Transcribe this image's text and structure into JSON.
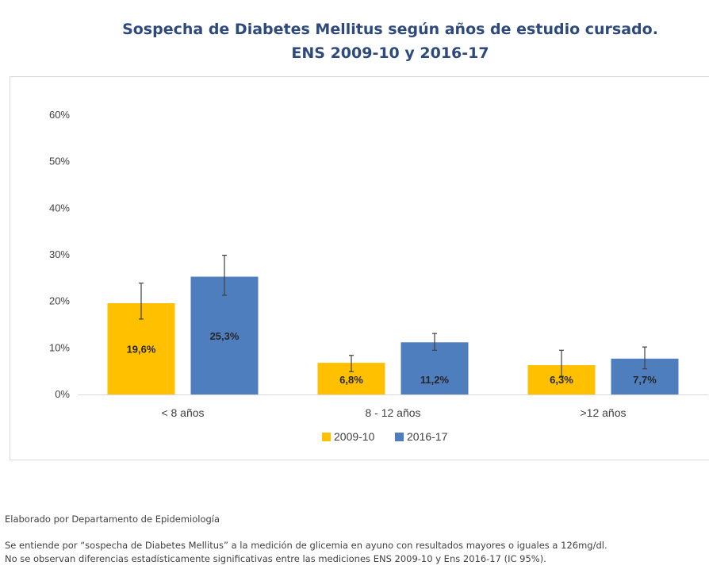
{
  "title_line1": "Sospecha de Diabetes Mellitus según años de estudio cursado.",
  "title_line2": "ENS 2009-10 y 2016-17",
  "notes": {
    "author": "Elaborado por Departamento de Epidemiología",
    "line1": "Se entiende por “sospecha de Diabetes Mellitus” a la medición de glicemia en ayuno con resultados mayores o iguales a 126mg/dl.",
    "line2": "No se observan diferencias estadísticamente significativas entre las mediciones ENS 2009-10 y Ens 2016-17 (IC 95%)."
  },
  "chart_data": {
    "type": "bar",
    "title": "Sospecha de Diabetes Mellitus según años de estudio cursado. ENS 2009-10 y 2016-17",
    "categories": [
      "< 8 años",
      "8 - 12 años",
      ">12 años"
    ],
    "series": [
      {
        "name": "2009-10",
        "color": "#ffc000",
        "values": [
          19.6,
          6.8,
          6.3
        ],
        "labels": [
          "19,6%",
          "6,8%",
          "6,3%"
        ],
        "error_low": [
          16.2,
          4.9,
          3.9
        ],
        "error_high": [
          23.9,
          8.4,
          9.5
        ]
      },
      {
        "name": "2016-17",
        "color": "#4f7ebf",
        "values": [
          25.3,
          11.2,
          7.7
        ],
        "labels": [
          "25,3%",
          "11,2%",
          "7,7%"
        ],
        "error_low": [
          21.3,
          9.5,
          5.5
        ],
        "error_high": [
          29.9,
          13.1,
          10.2
        ]
      }
    ],
    "yticks": [
      "0%",
      "10%",
      "20%",
      "30%",
      "40%",
      "50%",
      "60%"
    ],
    "ylim": [
      0,
      60
    ],
    "grid": false,
    "legend": "bottom"
  }
}
